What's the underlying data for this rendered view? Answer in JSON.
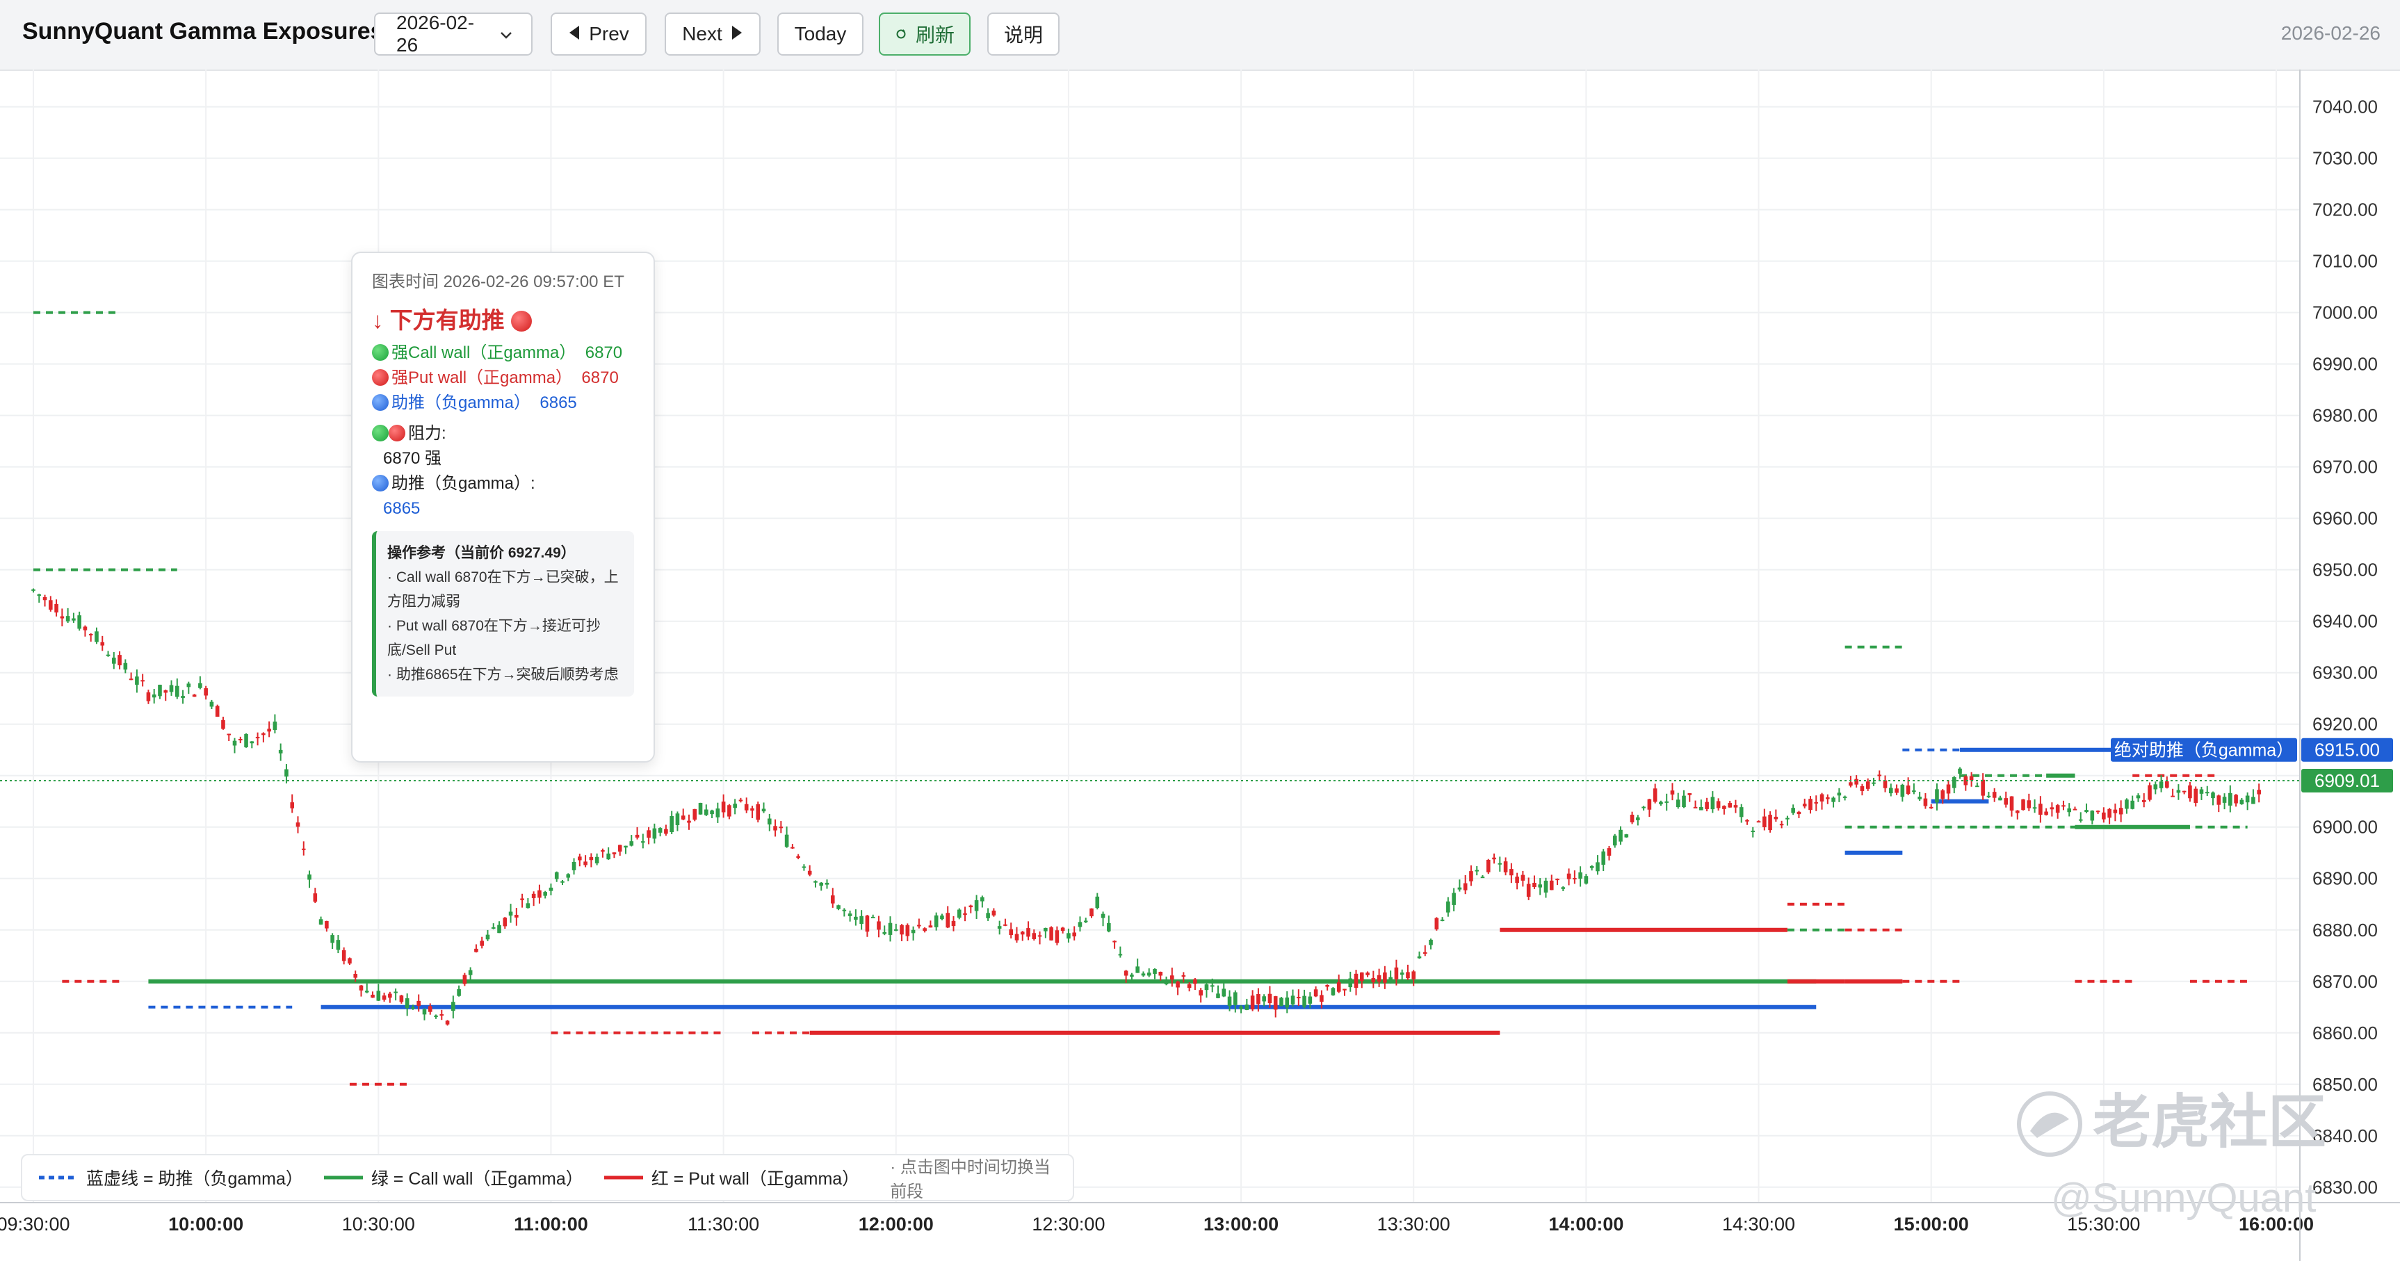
{
  "header": {
    "title": "SunnyQuant Gamma Exposures",
    "date_value": "2026-02-26",
    "prev_label": "Prev",
    "next_label": "Next",
    "today_label": "Today",
    "refresh_label": "刷新",
    "help_label": "说明",
    "date_display": "2026-02-26"
  },
  "tooltip": {
    "time": "图表时间 2026-02-26 09:57:00 ET",
    "headline": "↓ 下方有助推",
    "call_wall_label": "强Call wall（正gamma）",
    "call_wall_value": "6870",
    "put_wall_label": "强Put wall（正gamma）",
    "put_wall_value": "6870",
    "boost_label": "助推（负gamma）",
    "boost_value": "6865",
    "resistance_label": "阻力:",
    "resistance_value": "6870 强",
    "boost_section_label": "助推（负gamma）:",
    "boost_section_value": "6865",
    "ops_title": "操作参考（当前价 6927.49）",
    "ops_1": "· Call wall 6870在下方→已突破，上方阻力减弱",
    "ops_2": "· Put wall 6870在下方→接近可抄底/Sell Put",
    "ops_3": "· 助推6865在下方→突破后顺势考虑"
  },
  "legend": {
    "blue_label": "蓝虚线 = 助推（负gamma）",
    "green_label": "绿 = Call wall（正gamma）",
    "red_label": "红 = Put wall（正gamma）",
    "hint": "· 点击图中时间切换当前段"
  },
  "watermark": {
    "brand": "老虎社区",
    "handle": "@SunnyQuant"
  },
  "colors": {
    "up": "#26a69a",
    "up_candle": "#2e9e49",
    "down_candle": "#e0262a",
    "call_wall": "#2e9e49",
    "put_wall": "#e0262a",
    "boost": "#1f5fd6"
  },
  "chart_data": {
    "type": "candlestick",
    "ylim": [
      6827,
      7044
    ],
    "yticks": [
      "7040.00",
      "7030.00",
      "7020.00",
      "7010.00",
      "7000.00",
      "6990.00",
      "6980.00",
      "6970.00",
      "6960.00",
      "6950.00",
      "6940.00",
      "6930.00",
      "6920.00",
      "6910.00",
      "6900.00",
      "6890.00",
      "6880.00",
      "6870.00",
      "6860.00",
      "6850.00",
      "6840.00",
      "6830.00"
    ],
    "xticks": [
      {
        "label": "09:30:00",
        "bold": false
      },
      {
        "label": "10:00:00",
        "bold": true
      },
      {
        "label": "10:30:00",
        "bold": false
      },
      {
        "label": "11:00:00",
        "bold": true
      },
      {
        "label": "11:30:00",
        "bold": false
      },
      {
        "label": "12:00:00",
        "bold": true
      },
      {
        "label": "12:30:00",
        "bold": false
      },
      {
        "label": "13:00:00",
        "bold": true
      },
      {
        "label": "13:30:00",
        "bold": false
      },
      {
        "label": "14:00:00",
        "bold": true
      },
      {
        "label": "14:30:00",
        "bold": false
      },
      {
        "label": "15:00:00",
        "bold": true
      },
      {
        "label": "15:30:00",
        "bold": false
      },
      {
        "label": "16:00:00",
        "bold": true
      }
    ],
    "price_path": [
      [
        "09:30",
        6946
      ],
      [
        "09:40",
        6938
      ],
      [
        "09:50",
        6926
      ],
      [
        "10:00",
        6927
      ],
      [
        "10:05",
        6916
      ],
      [
        "10:12",
        6919
      ],
      [
        "10:15",
        6905
      ],
      [
        "10:20",
        6882
      ],
      [
        "10:28",
        6868
      ],
      [
        "10:35",
        6866
      ],
      [
        "10:42",
        6862
      ],
      [
        "10:48",
        6878
      ],
      [
        "10:55",
        6885
      ],
      [
        "11:05",
        6893
      ],
      [
        "11:15",
        6897
      ],
      [
        "11:25",
        6903
      ],
      [
        "11:35",
        6904
      ],
      [
        "11:40",
        6899
      ],
      [
        "11:45",
        6892
      ],
      [
        "11:52",
        6882
      ],
      [
        "12:00",
        6880
      ],
      [
        "12:10",
        6882
      ],
      [
        "12:15",
        6885
      ],
      [
        "12:20",
        6879
      ],
      [
        "12:30",
        6879
      ],
      [
        "12:35",
        6885
      ],
      [
        "12:40",
        6872
      ],
      [
        "12:50",
        6870
      ],
      [
        "13:00",
        6866
      ],
      [
        "13:10",
        6866
      ],
      [
        "13:20",
        6870
      ],
      [
        "13:30",
        6872
      ],
      [
        "13:35",
        6883
      ],
      [
        "13:40",
        6890
      ],
      [
        "13:45",
        6894
      ],
      [
        "13:50",
        6888
      ],
      [
        "14:00",
        6890
      ],
      [
        "14:05",
        6897
      ],
      [
        "14:12",
        6906
      ],
      [
        "14:25",
        6904
      ],
      [
        "14:30",
        6900
      ],
      [
        "14:40",
        6905
      ],
      [
        "14:50",
        6909
      ],
      [
        "15:00",
        6905
      ],
      [
        "15:05",
        6910
      ],
      [
        "15:15",
        6904
      ],
      [
        "15:30",
        6902
      ],
      [
        "15:40",
        6908
      ],
      [
        "15:50",
        6905
      ],
      [
        "15:58",
        6906
      ]
    ],
    "current_price": "6909.01",
    "level_label": "6915.00",
    "level_tag": "绝对助推（负gamma）",
    "walls": [
      {
        "kind": "call",
        "price": 6870,
        "from": "09:50",
        "to": "14:40",
        "style": "solid"
      },
      {
        "kind": "call",
        "price": 6870,
        "from": "13:05",
        "to": "13:30",
        "style": "solid"
      },
      {
        "kind": "boost",
        "price": 6865,
        "from": "10:20",
        "to": "14:40",
        "style": "solid"
      },
      {
        "kind": "boost",
        "price": 6865,
        "from": "09:50",
        "to": "10:15",
        "style": "dashed"
      },
      {
        "kind": "put",
        "price": 6860,
        "from": "11:45",
        "to": "13:45",
        "style": "solid"
      },
      {
        "kind": "put",
        "price": 6860,
        "from": "11:00",
        "to": "11:30",
        "style": "dashed"
      },
      {
        "kind": "put",
        "price": 6860,
        "from": "11:35",
        "to": "11:55",
        "style": "dashed"
      },
      {
        "kind": "put",
        "price": 6850,
        "from": "10:25",
        "to": "10:35",
        "style": "dashed"
      },
      {
        "kind": "put",
        "price": 6870,
        "from": "09:35",
        "to": "09:45",
        "style": "dashed"
      },
      {
        "kind": "call",
        "price": 7000,
        "from": "09:30",
        "to": "09:45",
        "style": "dashed"
      },
      {
        "kind": "call",
        "price": 6950,
        "from": "09:30",
        "to": "09:55",
        "style": "dashed"
      },
      {
        "kind": "put",
        "price": 6880,
        "from": "13:45",
        "to": "14:35",
        "style": "solid"
      },
      {
        "kind": "call",
        "price": 6880,
        "from": "14:35",
        "to": "14:45",
        "style": "dashed"
      },
      {
        "kind": "put",
        "price": 6880,
        "from": "14:45",
        "to": "14:55",
        "style": "dashed"
      },
      {
        "kind": "put",
        "price": 6870,
        "from": "14:35",
        "to": "14:45",
        "style": "solid"
      },
      {
        "kind": "put",
        "price": 6870,
        "from": "14:45",
        "to": "14:55",
        "style": "solid"
      },
      {
        "kind": "put",
        "price": 6870,
        "from": "14:55",
        "to": "15:05",
        "style": "dashed"
      },
      {
        "kind": "put",
        "price": 6870,
        "from": "15:25",
        "to": "15:35",
        "style": "dashed"
      },
      {
        "kind": "put",
        "price": 6870,
        "from": "15:45",
        "to": "15:55",
        "style": "dashed"
      },
      {
        "kind": "put",
        "price": 6885,
        "from": "14:35",
        "to": "14:45",
        "style": "dashed"
      },
      {
        "kind": "call",
        "price": 6935,
        "from": "14:45",
        "to": "14:55",
        "style": "dashed"
      },
      {
        "kind": "boost",
        "price": 6915,
        "from": "14:55",
        "to": "15:05",
        "style": "dashed"
      },
      {
        "kind": "boost",
        "price": 6915,
        "from": "15:05",
        "to": "15:35",
        "style": "solid"
      },
      {
        "kind": "boost",
        "price": 6905,
        "from": "15:00",
        "to": "15:10",
        "style": "solid"
      },
      {
        "kind": "boost",
        "price": 6895,
        "from": "14:45",
        "to": "14:55",
        "style": "solid"
      },
      {
        "kind": "call",
        "price": 6900,
        "from": "14:45",
        "to": "15:55",
        "style": "dashed"
      },
      {
        "kind": "call",
        "price": 6900,
        "from": "15:25",
        "to": "15:45",
        "style": "solid"
      },
      {
        "kind": "call",
        "price": 6910,
        "from": "15:05",
        "to": "15:25",
        "style": "dashed"
      },
      {
        "kind": "call",
        "price": 6910,
        "from": "15:20",
        "to": "15:25",
        "style": "solid"
      },
      {
        "kind": "put",
        "price": 6910,
        "from": "15:35",
        "to": "15:50",
        "style": "dashed"
      }
    ]
  }
}
